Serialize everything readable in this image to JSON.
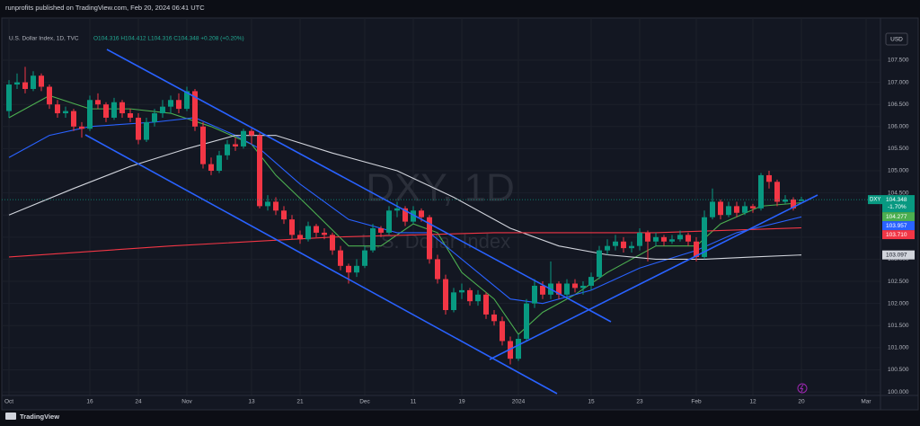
{
  "header": {
    "text": "runprofits published on TradingView.com, Feb 20, 2024 06:41 UTC"
  },
  "chart_data": {
    "type": "candlestick",
    "symbol_title": "U.S. Dollar Index, 1D, TVC",
    "ohlc_legend": "O104.316 H104.412 L104.316 C104.348 +0.208 (+0.20%)",
    "watermark": "DXY, 1D",
    "watermark_subtitle": "U.S. Dollar Index",
    "currency": "USD",
    "categories": [
      "Oct",
      null,
      null,
      null,
      null,
      null,
      null,
      null,
      null,
      null,
      "16",
      null,
      null,
      null,
      null,
      null,
      "24",
      null,
      null,
      null,
      null,
      null,
      "Nov",
      null,
      null,
      null,
      null,
      null,
      null,
      null,
      "13",
      null,
      null,
      null,
      null,
      null,
      "21",
      null,
      null,
      null,
      null,
      null,
      null,
      null,
      "Dec",
      null,
      null,
      null,
      null,
      null,
      "11",
      null,
      null,
      null,
      null,
      null,
      "19",
      null,
      null,
      null,
      null,
      null,
      null,
      "2024",
      null,
      null,
      null,
      null,
      null,
      null,
      null,
      null,
      "15",
      null,
      null,
      null,
      null,
      null,
      "23",
      null,
      null,
      null,
      null,
      null,
      null,
      "Feb",
      null,
      null,
      null,
      null,
      null,
      null,
      "12",
      null,
      null,
      null,
      null,
      null,
      "20",
      null,
      null,
      null,
      null,
      null,
      null,
      null,
      "Mar"
    ],
    "candles": [
      [
        106.35,
        107.05,
        106.2,
        106.95
      ],
      [
        106.95,
        107.2,
        106.85,
        107.0
      ],
      [
        107.0,
        107.35,
        106.75,
        106.85
      ],
      [
        106.85,
        107.25,
        106.8,
        107.15
      ],
      [
        107.15,
        107.2,
        106.8,
        106.9
      ],
      [
        106.9,
        106.95,
        106.4,
        106.5
      ],
      [
        106.5,
        106.6,
        106.2,
        106.3
      ],
      [
        106.3,
        106.45,
        106.2,
        106.35
      ],
      [
        106.35,
        106.4,
        105.9,
        106.0
      ],
      [
        106.0,
        106.1,
        105.75,
        105.95
      ],
      [
        105.95,
        106.7,
        105.9,
        106.6
      ],
      [
        106.6,
        106.75,
        106.4,
        106.5
      ],
      [
        106.5,
        106.55,
        106.1,
        106.2
      ],
      [
        106.2,
        106.65,
        106.15,
        106.55
      ],
      [
        106.55,
        106.6,
        106.2,
        106.3
      ],
      [
        106.3,
        106.4,
        106.1,
        106.2
      ],
      [
        106.2,
        106.3,
        105.6,
        105.7
      ],
      [
        105.7,
        106.2,
        105.65,
        106.1
      ],
      [
        106.1,
        106.4,
        106.0,
        106.3
      ],
      [
        106.3,
        106.6,
        106.2,
        106.45
      ],
      [
        106.45,
        106.7,
        106.3,
        106.6
      ],
      [
        106.6,
        106.75,
        106.3,
        106.4
      ],
      [
        106.4,
        106.9,
        106.35,
        106.8
      ],
      [
        106.8,
        106.85,
        105.9,
        106.0
      ],
      [
        106.0,
        106.1,
        105.05,
        105.15
      ],
      [
        105.15,
        105.3,
        104.9,
        105.0
      ],
      [
        105.0,
        105.45,
        104.95,
        105.35
      ],
      [
        105.35,
        105.7,
        105.25,
        105.6
      ],
      [
        105.6,
        105.75,
        105.45,
        105.55
      ],
      [
        105.55,
        105.95,
        105.5,
        105.9
      ],
      [
        105.9,
        105.95,
        105.6,
        105.8
      ],
      [
        105.8,
        105.85,
        104.15,
        104.2
      ],
      [
        104.2,
        104.45,
        104.1,
        104.3
      ],
      [
        104.3,
        104.4,
        104.0,
        104.1
      ],
      [
        104.1,
        104.2,
        103.8,
        103.9
      ],
      [
        103.9,
        104.0,
        103.45,
        103.55
      ],
      [
        103.55,
        103.65,
        103.35,
        103.45
      ],
      [
        103.45,
        103.85,
        103.4,
        103.75
      ],
      [
        103.75,
        103.8,
        103.5,
        103.6
      ],
      [
        103.6,
        103.7,
        103.45,
        103.55
      ],
      [
        103.55,
        103.6,
        103.1,
        103.2
      ],
      [
        103.2,
        103.3,
        102.75,
        102.85
      ],
      [
        102.85,
        102.9,
        102.45,
        102.7
      ],
      [
        102.7,
        103.0,
        102.6,
        102.85
      ],
      [
        102.85,
        103.3,
        102.8,
        103.2
      ],
      [
        103.2,
        103.8,
        103.15,
        103.7
      ],
      [
        103.7,
        103.75,
        103.5,
        103.6
      ],
      [
        103.6,
        104.2,
        103.55,
        104.1
      ],
      [
        104.1,
        104.3,
        103.95,
        104.15
      ],
      [
        104.15,
        104.2,
        103.75,
        103.85
      ],
      [
        103.85,
        104.2,
        103.8,
        104.1
      ],
      [
        104.1,
        104.15,
        103.85,
        103.95
      ],
      [
        103.95,
        104.0,
        102.9,
        103.0
      ],
      [
        103.0,
        103.1,
        102.45,
        102.55
      ],
      [
        102.55,
        102.65,
        101.75,
        101.85
      ],
      [
        101.85,
        102.35,
        101.8,
        102.25
      ],
      [
        102.25,
        102.45,
        102.1,
        102.3
      ],
      [
        102.3,
        102.35,
        101.95,
        102.05
      ],
      [
        102.05,
        102.3,
        101.95,
        102.2
      ],
      [
        102.2,
        102.25,
        101.65,
        101.75
      ],
      [
        101.75,
        101.85,
        101.5,
        101.6
      ],
      [
        101.6,
        101.7,
        101.05,
        101.15
      ],
      [
        101.15,
        101.25,
        100.62,
        100.75
      ],
      [
        100.75,
        101.3,
        100.7,
        101.2
      ],
      [
        101.2,
        102.1,
        101.15,
        102.0
      ],
      [
        102.0,
        102.55,
        101.9,
        102.4
      ],
      [
        102.4,
        102.5,
        102.1,
        102.2
      ],
      [
        102.2,
        102.95,
        102.1,
        102.45
      ],
      [
        102.45,
        102.5,
        102.1,
        102.2
      ],
      [
        102.2,
        102.55,
        102.15,
        102.45
      ],
      [
        102.45,
        102.55,
        102.25,
        102.35
      ],
      [
        102.35,
        102.5,
        102.2,
        102.4
      ],
      [
        102.4,
        102.7,
        102.3,
        102.6
      ],
      [
        102.6,
        103.3,
        102.55,
        103.2
      ],
      [
        103.2,
        103.45,
        103.1,
        103.3
      ],
      [
        103.3,
        103.55,
        103.2,
        103.4
      ],
      [
        103.4,
        103.5,
        103.15,
        103.25
      ],
      [
        103.25,
        103.4,
        103.15,
        103.3
      ],
      [
        103.3,
        103.7,
        103.2,
        103.6
      ],
      [
        103.6,
        103.65,
        102.95,
        103.4
      ],
      [
        103.4,
        103.6,
        103.3,
        103.5
      ],
      [
        103.5,
        103.55,
        103.3,
        103.4
      ],
      [
        103.4,
        103.55,
        103.35,
        103.45
      ],
      [
        103.45,
        103.65,
        103.4,
        103.55
      ],
      [
        103.55,
        103.6,
        103.3,
        103.4
      ],
      [
        103.4,
        103.5,
        102.95,
        103.05
      ],
      [
        103.05,
        104.1,
        103.0,
        103.95
      ],
      [
        103.95,
        104.6,
        103.9,
        104.3
      ],
      [
        104.3,
        104.35,
        103.9,
        104.0
      ],
      [
        104.0,
        104.3,
        103.95,
        104.2
      ],
      [
        104.2,
        104.3,
        103.95,
        104.05
      ],
      [
        104.05,
        104.3,
        104.0,
        104.2
      ],
      [
        104.2,
        104.25,
        104.05,
        104.15
      ],
      [
        104.15,
        104.95,
        104.1,
        104.9
      ],
      [
        104.9,
        105.0,
        104.6,
        104.75
      ],
      [
        104.75,
        104.8,
        104.2,
        104.3
      ],
      [
        104.3,
        104.45,
        104.25,
        104.35
      ],
      [
        104.35,
        104.4,
        104.1,
        104.15
      ],
      [
        104.316,
        104.412,
        104.316,
        104.348
      ],
      null,
      null,
      null,
      null,
      null,
      null,
      null,
      null
    ],
    "up_color": "#089981",
    "down_color": "#f23645",
    "ylim": [
      99.92,
      108.15
    ],
    "yticks": [
      {
        "value": 100,
        "label": "100.000"
      },
      {
        "value": 100.5,
        "label": "100.500"
      },
      {
        "value": 101,
        "label": "101.000"
      },
      {
        "value": 101.5,
        "label": "101.500"
      },
      {
        "value": 102,
        "label": "102.000"
      },
      {
        "value": 102.5,
        "label": "102.500"
      },
      {
        "value": 103,
        "label": "103.000"
      },
      {
        "value": 103.5,
        "label": "103.500"
      },
      {
        "value": 104,
        "label": "104.000"
      },
      {
        "value": 104.5,
        "label": "104.500"
      },
      {
        "value": 105,
        "label": "105.000"
      },
      {
        "value": 105.5,
        "label": "105.500"
      },
      {
        "value": 106,
        "label": "106.000"
      },
      {
        "value": 106.5,
        "label": "106.500"
      },
      {
        "value": 107,
        "label": "107.000"
      },
      {
        "value": 107.5,
        "label": "107.500"
      }
    ],
    "grid": true,
    "ma_lines": [
      {
        "color": "#4caf50",
        "points": [
          [
            0,
            106.2
          ],
          [
            5,
            106.7
          ],
          [
            10,
            106.4
          ],
          [
            15,
            106.4
          ],
          [
            20,
            106.3
          ],
          [
            25,
            106.0
          ],
          [
            30,
            105.6
          ],
          [
            33,
            104.9
          ],
          [
            37,
            104.2
          ],
          [
            42,
            103.3
          ],
          [
            46,
            103.3
          ],
          [
            50,
            103.8
          ],
          [
            53,
            103.6
          ],
          [
            56,
            102.7
          ],
          [
            60,
            102.1
          ],
          [
            63,
            101.3
          ],
          [
            66,
            101.8
          ],
          [
            70,
            102.2
          ],
          [
            74,
            102.7
          ],
          [
            80,
            103.3
          ],
          [
            85,
            103.3
          ],
          [
            88,
            103.8
          ],
          [
            93,
            104.2
          ],
          [
            98,
            104.277
          ]
        ]
      },
      {
        "color": "#2962ff",
        "points": [
          [
            0,
            105.3
          ],
          [
            5,
            105.8
          ],
          [
            10,
            106.0
          ],
          [
            18,
            106.1
          ],
          [
            23,
            106.2
          ],
          [
            28,
            105.8
          ],
          [
            31,
            105.5
          ],
          [
            36,
            104.7
          ],
          [
            42,
            103.9
          ],
          [
            48,
            103.6
          ],
          [
            52,
            103.6
          ],
          [
            56,
            103.0
          ],
          [
            62,
            102.1
          ],
          [
            66,
            102.0
          ],
          [
            72,
            102.3
          ],
          [
            78,
            102.8
          ],
          [
            85,
            103.2
          ],
          [
            90,
            103.6
          ],
          [
            98,
            103.957
          ]
        ]
      },
      {
        "color": "#d1d4dc",
        "points": [
          [
            0,
            104.0
          ],
          [
            8,
            104.6
          ],
          [
            15,
            105.1
          ],
          [
            22,
            105.5
          ],
          [
            28,
            105.8
          ],
          [
            33,
            105.8
          ],
          [
            40,
            105.4
          ],
          [
            48,
            105.0
          ],
          [
            55,
            104.4
          ],
          [
            62,
            103.7
          ],
          [
            68,
            103.3
          ],
          [
            74,
            103.1
          ],
          [
            80,
            103.0
          ],
          [
            86,
            103.0
          ],
          [
            92,
            103.05
          ],
          [
            98,
            103.097
          ]
        ]
      },
      {
        "color": "#f23645",
        "points": [
          [
            0,
            103.05
          ],
          [
            20,
            103.3
          ],
          [
            40,
            103.5
          ],
          [
            60,
            103.6
          ],
          [
            80,
            103.6
          ],
          [
            98,
            103.71
          ]
        ]
      }
    ],
    "price_tags": [
      {
        "symbol": "DXY",
        "value": 104.348,
        "label": "104.348",
        "change": "-1.70%",
        "color": "#089981"
      },
      {
        "value": 104.277,
        "label": "104.277",
        "color": "#4caf50"
      },
      {
        "value": 103.957,
        "label": "103.957",
        "color": "#2962ff"
      },
      {
        "value": 103.71,
        "label": "103.710",
        "color": "#f23645"
      },
      {
        "value": 103.097,
        "label": "103.097",
        "color": "#d1d4dc"
      }
    ]
  },
  "footer": {
    "brand": "TradingView"
  }
}
